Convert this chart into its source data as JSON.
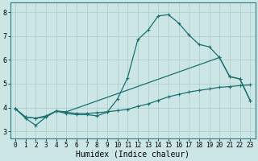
{
  "xlabel": "Humidex (Indice chaleur)",
  "xlim": [
    -0.5,
    23.5
  ],
  "ylim": [
    2.7,
    8.4
  ],
  "bg_color": "#cce5e5",
  "grid_color": "#b0cfcf",
  "line_color": "#1a7070",
  "line1_x": [
    0,
    1,
    2,
    3,
    4,
    5,
    6,
    7,
    8,
    9,
    10,
    11,
    12,
    13,
    14,
    15,
    16,
    17,
    18,
    19,
    20,
    21,
    22,
    23
  ],
  "line1_y": [
    3.95,
    3.55,
    3.25,
    3.6,
    3.85,
    3.75,
    3.7,
    3.7,
    3.65,
    3.8,
    4.35,
    5.25,
    6.85,
    7.25,
    7.85,
    7.9,
    7.55,
    7.05,
    6.65,
    6.55,
    6.1,
    5.3,
    5.2,
    4.3
  ],
  "line2_x": [
    0,
    1,
    2,
    3,
    4,
    5,
    6,
    7,
    8,
    9,
    10,
    11,
    12,
    13,
    14,
    15,
    16,
    17,
    18,
    19,
    20,
    21,
    22,
    23
  ],
  "line2_y": [
    3.95,
    3.6,
    3.55,
    3.6,
    3.85,
    3.8,
    3.75,
    3.75,
    3.78,
    3.82,
    3.87,
    3.92,
    4.05,
    4.15,
    4.3,
    4.45,
    4.55,
    4.65,
    4.72,
    4.78,
    4.85,
    4.88,
    4.92,
    4.95
  ],
  "line3_x": [
    0,
    1,
    2,
    3,
    4,
    5,
    20,
    21,
    22,
    23
  ],
  "line3_y": [
    3.95,
    3.6,
    3.55,
    3.65,
    3.85,
    3.82,
    6.1,
    5.3,
    5.2,
    4.3
  ],
  "xticks": [
    0,
    1,
    2,
    3,
    4,
    5,
    6,
    7,
    8,
    9,
    10,
    11,
    12,
    13,
    14,
    15,
    16,
    17,
    18,
    19,
    20,
    21,
    22,
    23
  ],
  "yticks": [
    3,
    4,
    5,
    6,
    7,
    8
  ],
  "tick_fontsize": 5.5,
  "label_fontsize": 7
}
